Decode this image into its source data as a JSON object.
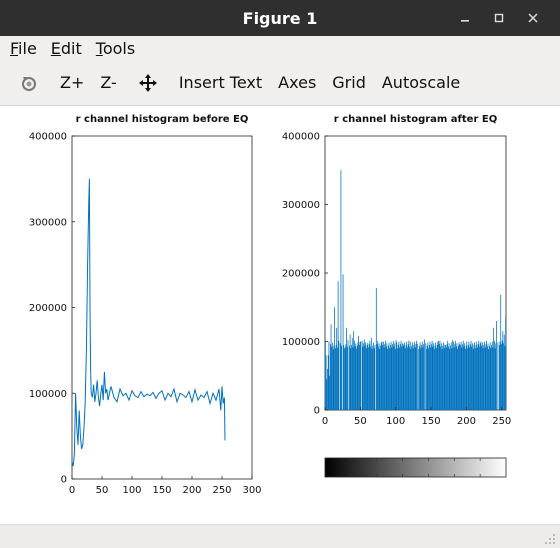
{
  "window": {
    "title": "Figure 1"
  },
  "menu": {
    "items": [
      {
        "label": "File",
        "accel": "F",
        "rest": "ile"
      },
      {
        "label": "Edit",
        "accel": "E",
        "rest": "dit"
      },
      {
        "label": "Tools",
        "accel": "T",
        "rest": "ools"
      }
    ]
  },
  "toolbar": {
    "rotate_icon": "rotate-icon",
    "zoom_in_label": "Z+",
    "zoom_out_label": "Z-",
    "pan_icon": "pan-icon",
    "insert_text_label": "Insert Text",
    "axes_label": "Axes",
    "grid_label": "Grid",
    "autoscale_label": "Autoscale"
  },
  "chart_data": [
    {
      "type": "line",
      "title": "r channel histogram before EQ",
      "xlim": [
        0,
        300
      ],
      "ylim": [
        0,
        400000
      ],
      "xticks": [
        0,
        50,
        100,
        150,
        200,
        250,
        300
      ],
      "yticks": [
        0,
        100000,
        200000,
        300000,
        400000
      ],
      "color": "#0072bd",
      "x": [
        0,
        2,
        4,
        6,
        8,
        10,
        12,
        14,
        16,
        18,
        20,
        22,
        24,
        26,
        28,
        29,
        30,
        31,
        32,
        34,
        36,
        38,
        40,
        42,
        44,
        46,
        48,
        50,
        52,
        54,
        56,
        58,
        60,
        65,
        70,
        75,
        80,
        85,
        90,
        95,
        100,
        105,
        110,
        115,
        120,
        125,
        130,
        135,
        140,
        145,
        150,
        155,
        160,
        165,
        170,
        175,
        180,
        185,
        190,
        195,
        200,
        205,
        210,
        215,
        220,
        225,
        230,
        235,
        240,
        245,
        248,
        250,
        252,
        254,
        255
      ],
      "y": [
        20000,
        15000,
        30000,
        100000,
        60000,
        40000,
        80000,
        50000,
        35000,
        40000,
        60000,
        90000,
        150000,
        250000,
        325000,
        350000,
        200000,
        130000,
        100000,
        95000,
        110000,
        90000,
        100000,
        115000,
        95000,
        85000,
        100000,
        110000,
        92000,
        125000,
        100000,
        105000,
        92000,
        108000,
        95000,
        90000,
        105000,
        97000,
        100000,
        92000,
        103000,
        97000,
        95000,
        102000,
        96000,
        99000,
        97000,
        101000,
        94000,
        100000,
        103000,
        92000,
        100000,
        96000,
        105000,
        90000,
        100000,
        98000,
        95000,
        102000,
        90000,
        104000,
        92000,
        98000,
        95000,
        102000,
        88000,
        100000,
        92000,
        105000,
        80000,
        108000,
        88000,
        95000,
        45000
      ]
    },
    {
      "type": "bar",
      "title": "r channel histogram after EQ",
      "xlim": [
        0,
        256
      ],
      "ylim": [
        0,
        400000
      ],
      "xticks": [
        0,
        50,
        100,
        150,
        200,
        250
      ],
      "yticks": [
        0,
        100000,
        200000,
        300000,
        400000
      ],
      "color": "#0072bd",
      "base_level": 95000,
      "bins": [
        {
          "x": 0,
          "y": 100000
        },
        {
          "x": 2,
          "y": 45000
        },
        {
          "x": 6,
          "y": 50000
        },
        {
          "x": 8,
          "y": 125000
        },
        {
          "x": 10,
          "y": 98000
        },
        {
          "x": 13,
          "y": 150000
        },
        {
          "x": 16,
          "y": 120000
        },
        {
          "x": 18,
          "y": 188000
        },
        {
          "x": 20,
          "y": 15000
        },
        {
          "x": 22,
          "y": 350000
        },
        {
          "x": 24,
          "y": 135000
        },
        {
          "x": 25,
          "y": 198000
        },
        {
          "x": 27,
          "y": 90000
        },
        {
          "x": 30,
          "y": 120000
        },
        {
          "x": 32,
          "y": 102000
        },
        {
          "x": 35,
          "y": 110000
        },
        {
          "x": 38,
          "y": 105000
        },
        {
          "x": 40,
          "y": 115000
        },
        {
          "x": 43,
          "y": 97000
        },
        {
          "x": 47,
          "y": 108000
        },
        {
          "x": 50,
          "y": 100000
        },
        {
          "x": 55,
          "y": 103000
        },
        {
          "x": 60,
          "y": 98000
        },
        {
          "x": 65,
          "y": 105000
        },
        {
          "x": 72,
          "y": 178000
        },
        {
          "x": 80,
          "y": 100000
        },
        {
          "x": 90,
          "y": 98000
        },
        {
          "x": 100,
          "y": 102000
        },
        {
          "x": 110,
          "y": 96000
        },
        {
          "x": 120,
          "y": 100000
        },
        {
          "x": 130,
          "y": 97000
        },
        {
          "x": 140,
          "y": 103000
        },
        {
          "x": 150,
          "y": 96000
        },
        {
          "x": 160,
          "y": 101000
        },
        {
          "x": 170,
          "y": 95000
        },
        {
          "x": 180,
          "y": 102000
        },
        {
          "x": 190,
          "y": 96000
        },
        {
          "x": 200,
          "y": 100000
        },
        {
          "x": 210,
          "y": 95000
        },
        {
          "x": 220,
          "y": 100000
        },
        {
          "x": 230,
          "y": 97000
        },
        {
          "x": 238,
          "y": 120000
        },
        {
          "x": 240,
          "y": 90000
        },
        {
          "x": 242,
          "y": 130000
        },
        {
          "x": 245,
          "y": 186000
        },
        {
          "x": 248,
          "y": 168000
        },
        {
          "x": 251,
          "y": 115000
        },
        {
          "x": 253,
          "y": 110000
        },
        {
          "x": 255,
          "y": 135000
        }
      ],
      "gaps": [
        20,
        24,
        33,
        51,
        71,
        131,
        141,
        243,
        245
      ],
      "colorbar": {
        "from": "#000000",
        "to": "#ffffff",
        "ticks": 7
      }
    }
  ]
}
